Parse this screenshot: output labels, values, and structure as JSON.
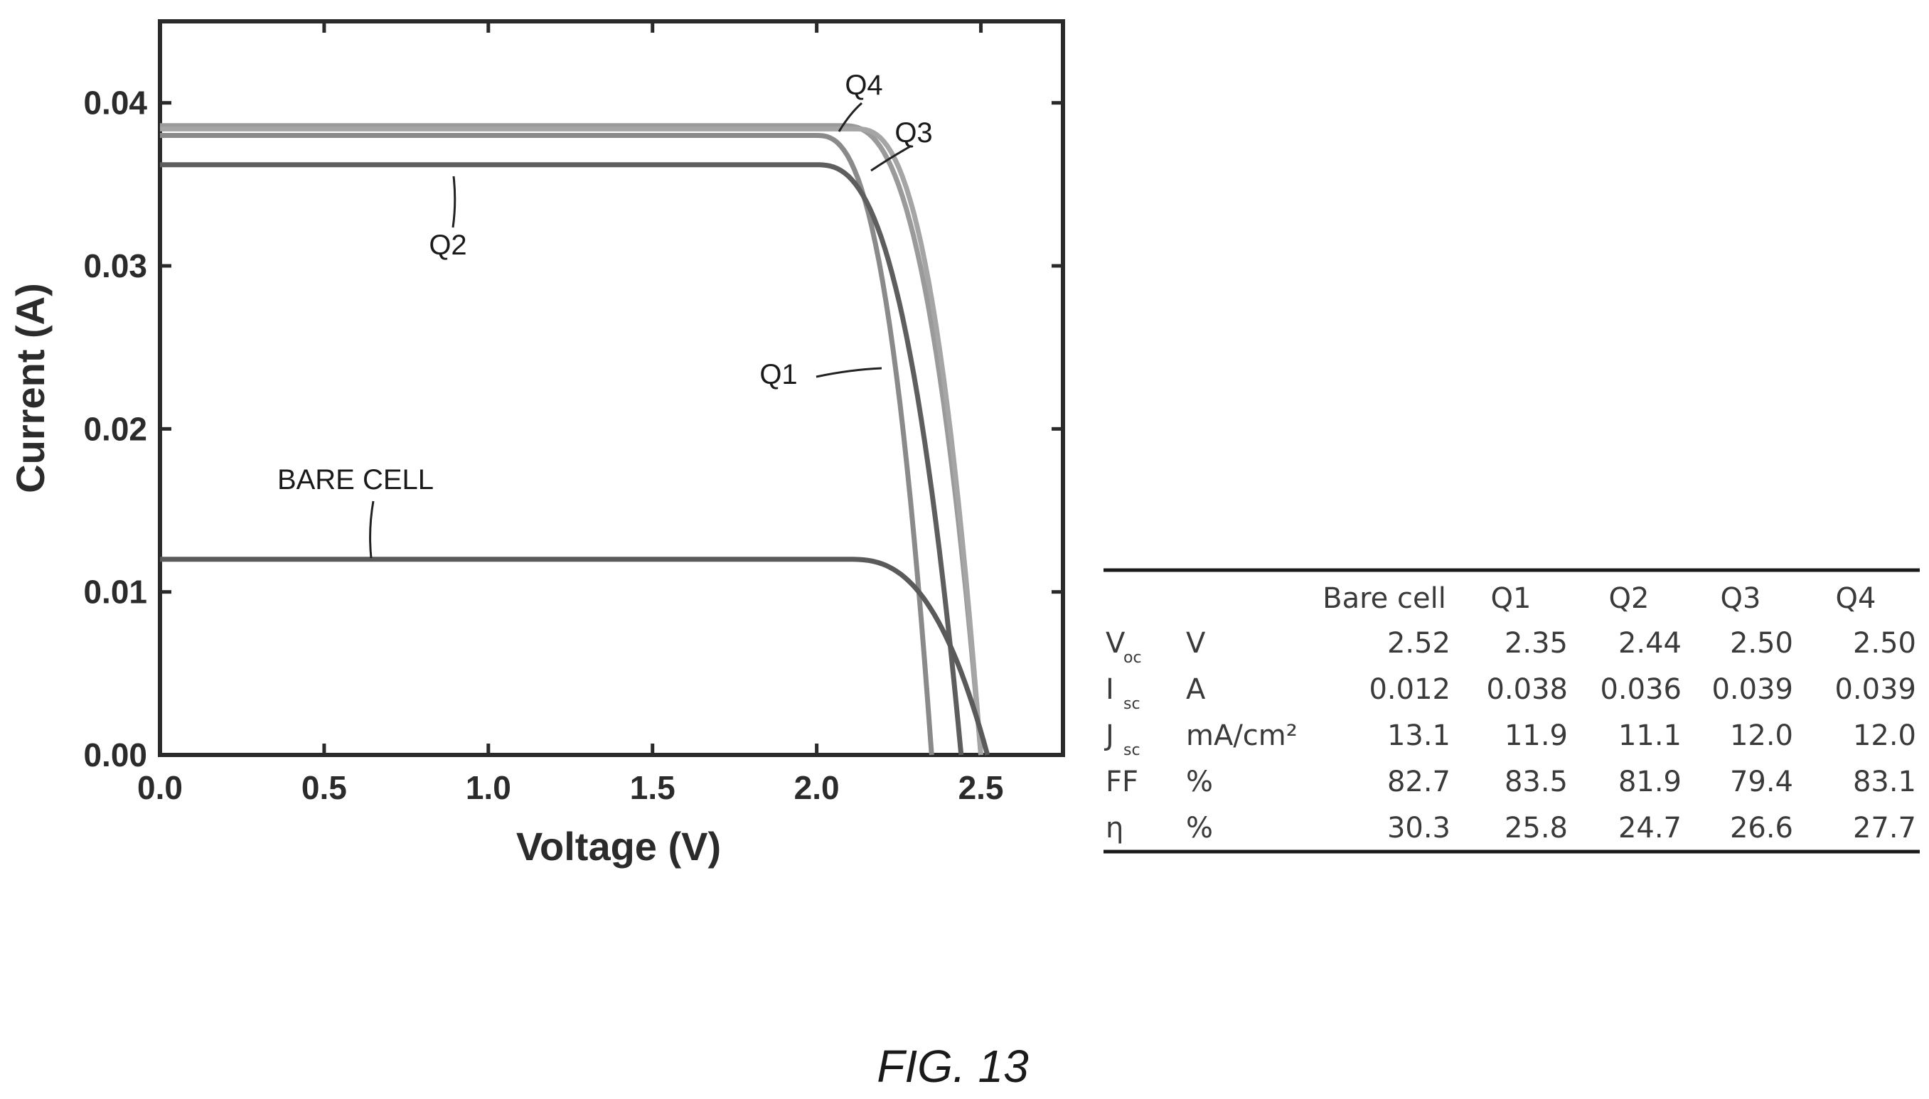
{
  "chart_data": {
    "type": "line",
    "xlabel": "Voltage (V)",
    "ylabel": "Current (A)",
    "xlim": [
      0,
      2.75
    ],
    "ylim": [
      0,
      0.045
    ],
    "xticks": [
      "0.0",
      "0.5",
      "1.0",
      "1.5",
      "2.0",
      "2.5"
    ],
    "yticks": [
      "0.00",
      "0.01",
      "0.02",
      "0.03",
      "0.04"
    ],
    "grid": false,
    "series": [
      {
        "name": "Q4",
        "color": "#9a9a9a",
        "isc": 0.0386,
        "voc": 2.5,
        "knee": 2.08,
        "x": [
          0,
          1.0,
          2.0,
          2.1,
          2.2,
          2.3,
          2.4,
          2.45,
          2.5
        ],
        "y": [
          0.0386,
          0.0386,
          0.0385,
          0.0382,
          0.0365,
          0.031,
          0.019,
          0.01,
          0.0
        ]
      },
      {
        "name": "Q3",
        "color": "#a5a5a5",
        "isc": 0.0384,
        "voc": 2.5,
        "knee": 2.12,
        "x": [
          0,
          1.0,
          2.0,
          2.1,
          2.2,
          2.3,
          2.4,
          2.45,
          2.5
        ],
        "y": [
          0.0384,
          0.0384,
          0.0383,
          0.038,
          0.036,
          0.0305,
          0.0185,
          0.01,
          0.0
        ]
      },
      {
        "name": "Q1",
        "color": "#8a8a8a",
        "isc": 0.038,
        "voc": 2.35,
        "knee": 2.0,
        "x": [
          0,
          1.0,
          1.9,
          2.0,
          2.1,
          2.2,
          2.3,
          2.35
        ],
        "y": [
          0.038,
          0.038,
          0.0378,
          0.0372,
          0.0345,
          0.027,
          0.012,
          0.0
        ]
      },
      {
        "name": "Q2",
        "color": "#5e5e5e",
        "isc": 0.0362,
        "voc": 2.44,
        "knee": 2.0,
        "x": [
          0,
          1.0,
          1.9,
          2.0,
          2.1,
          2.2,
          2.3,
          2.4,
          2.44
        ],
        "y": [
          0.0362,
          0.0362,
          0.036,
          0.0355,
          0.0335,
          0.028,
          0.018,
          0.006,
          0.0
        ]
      },
      {
        "name": "BARE CELL",
        "color": "#5a5a5a",
        "isc": 0.012,
        "voc": 2.52,
        "knee": 2.1,
        "x": [
          0,
          1.0,
          2.0,
          2.1,
          2.2,
          2.3,
          2.4,
          2.5,
          2.52
        ],
        "y": [
          0.012,
          0.012,
          0.0119,
          0.0117,
          0.011,
          0.0095,
          0.0065,
          0.002,
          0.0
        ]
      }
    ],
    "annotations": [
      "Q4",
      "Q3",
      "Q2",
      "Q1",
      "BARE CELL"
    ]
  },
  "table": {
    "columns": [
      "Bare cell",
      "Q1",
      "Q2",
      "Q3",
      "Q4"
    ],
    "rows": [
      {
        "symbol": "V",
        "sub": "oc",
        "unit": "V",
        "values": [
          "2.52",
          "2.35",
          "2.44",
          "2.50",
          "2.50"
        ]
      },
      {
        "symbol": "I",
        "sub": "sc",
        "unit": "A",
        "values": [
          "0.012",
          "0.038",
          "0.036",
          "0.039",
          "0.039"
        ]
      },
      {
        "symbol": "J",
        "sub": "sc",
        "unit": "mA/cm²",
        "values": [
          "13.1",
          "11.9",
          "11.1",
          "12.0",
          "12.0"
        ]
      },
      {
        "symbol": "FF",
        "sub": "",
        "unit": "%",
        "values": [
          "82.7",
          "83.5",
          "81.9",
          "79.4",
          "83.1"
        ]
      },
      {
        "symbol": "η",
        "sub": "",
        "unit": "%",
        "values": [
          "30.3",
          "25.8",
          "24.7",
          "26.6",
          "27.7"
        ]
      }
    ]
  },
  "figure_label": "FIG. 13"
}
